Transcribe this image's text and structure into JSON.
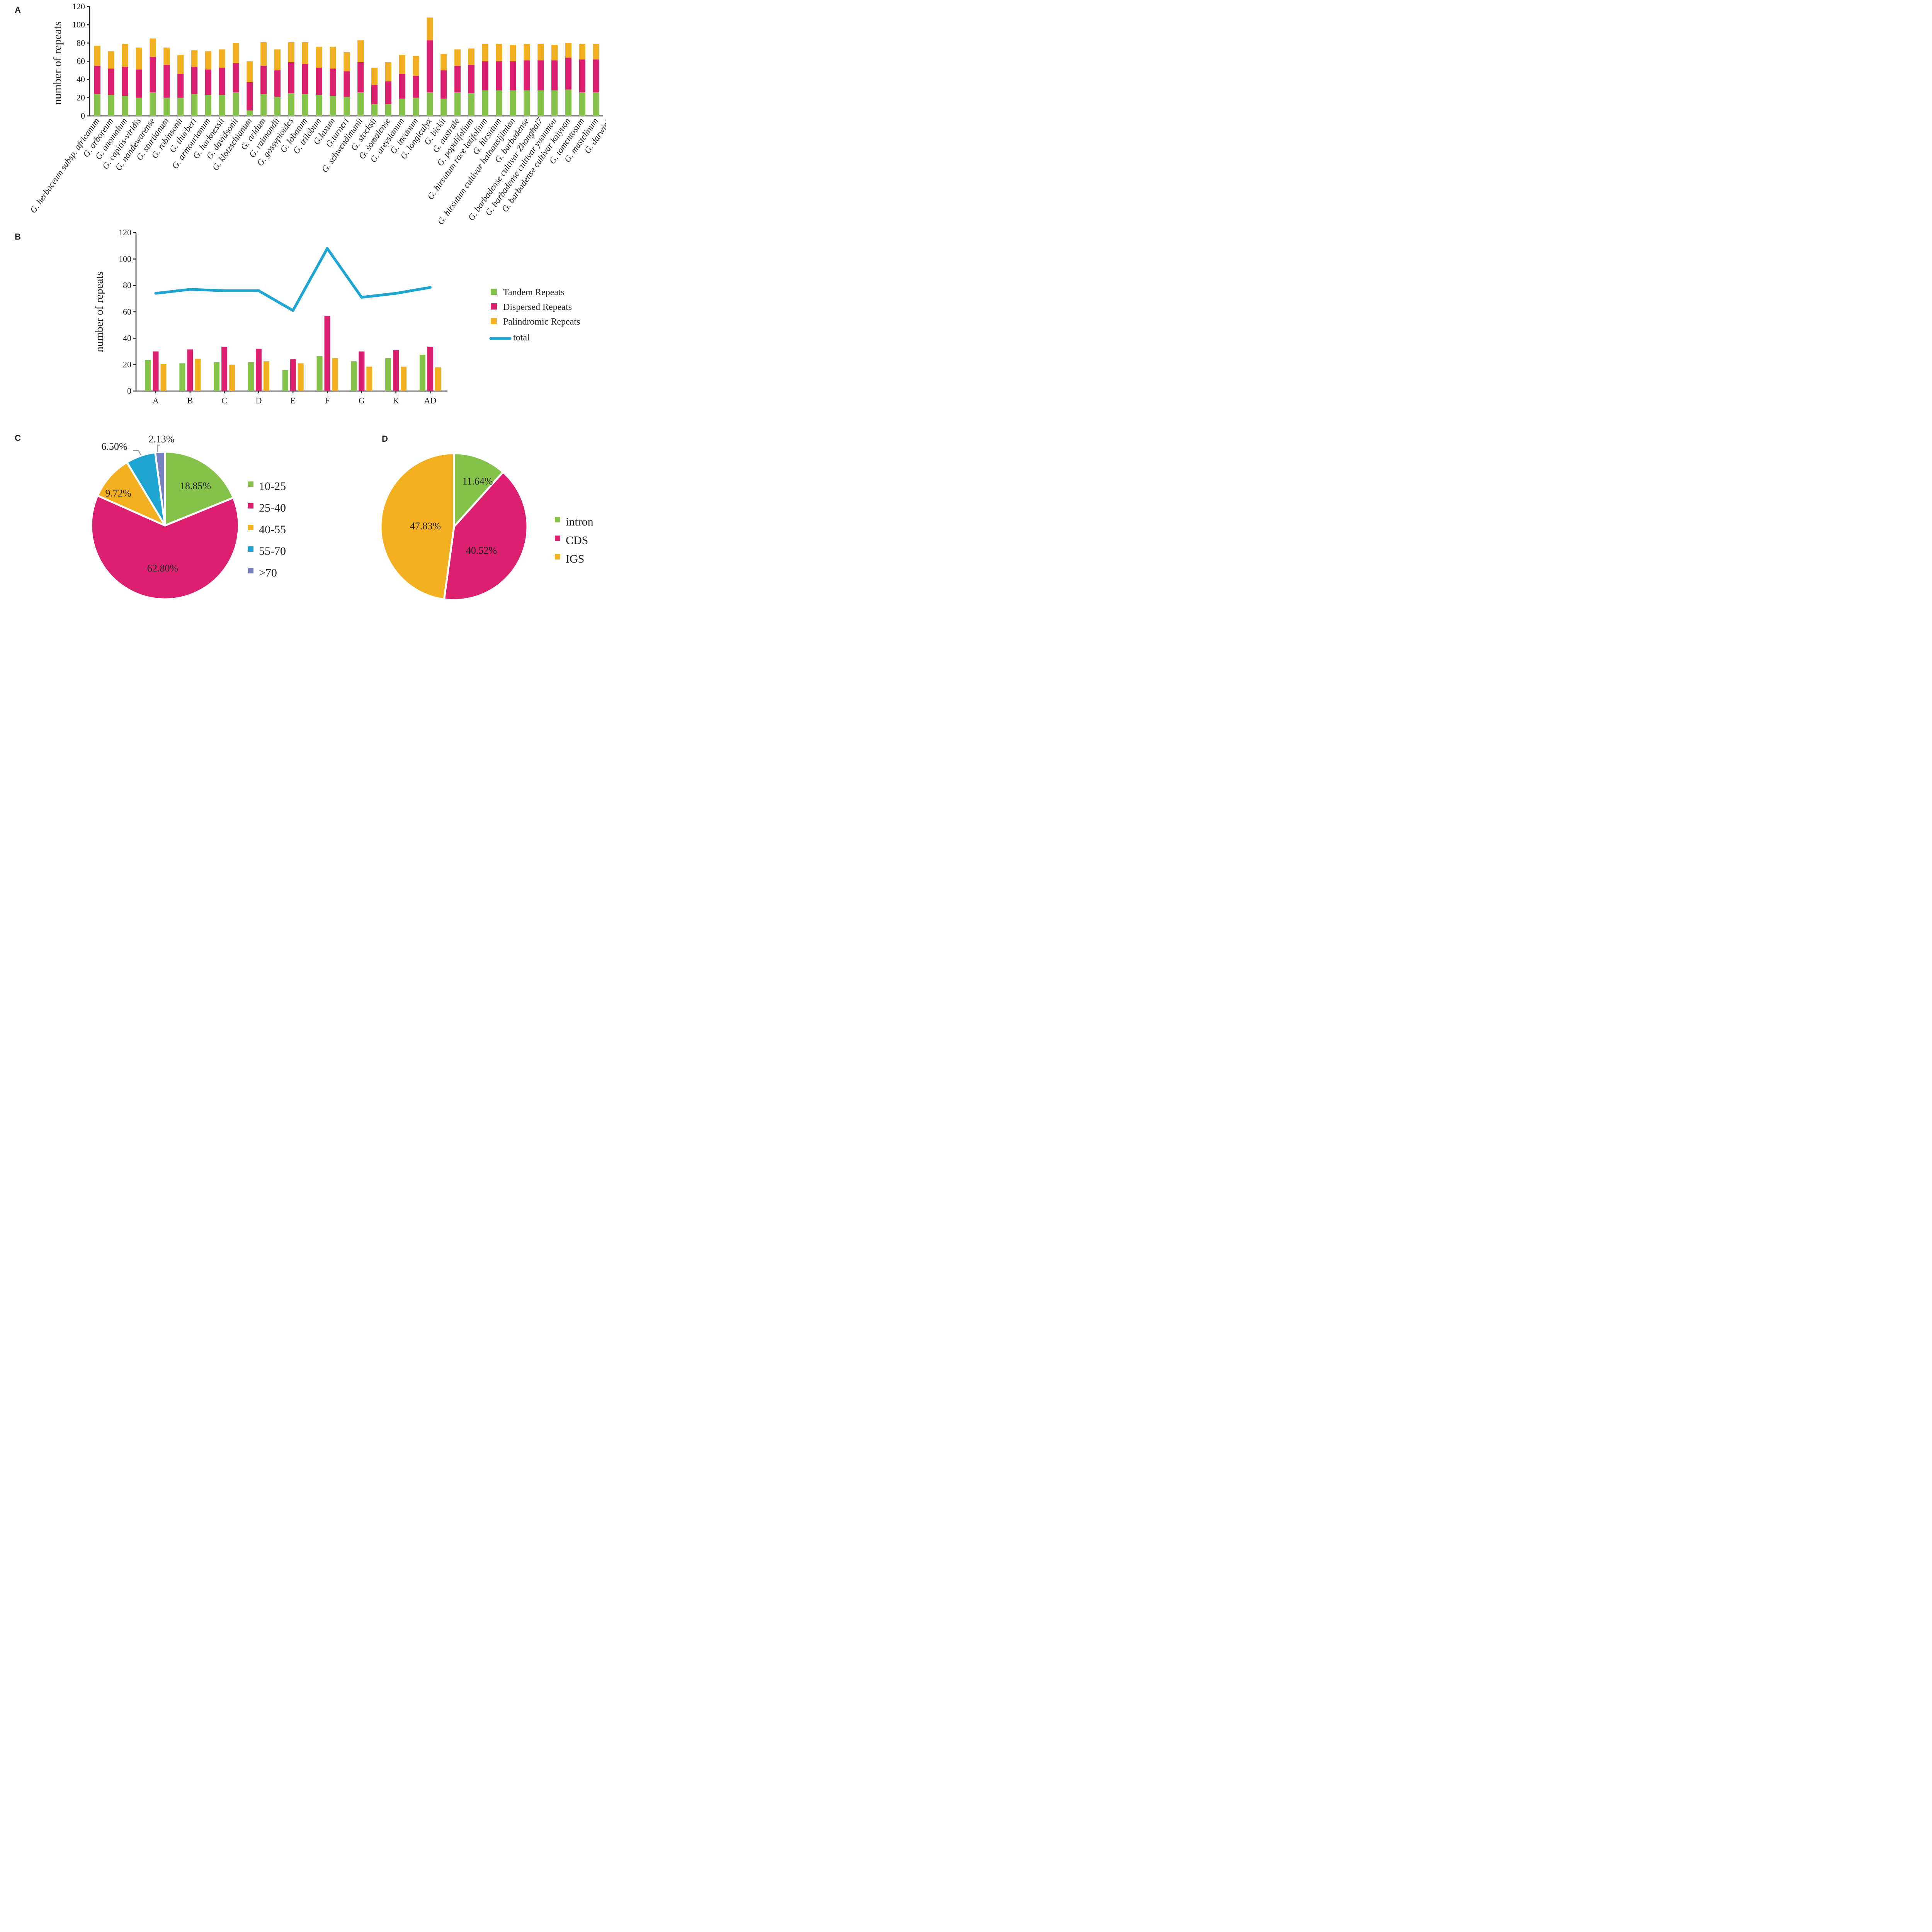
{
  "colors": {
    "tandem": "#84c24a",
    "dispersed": "#dc1f6e",
    "palindromic": "#f2b020",
    "total": "#1ea5d2",
    "c55_70": "#1da4d0",
    "c70": "#7480c0",
    "axis": "#231f20"
  },
  "chart_data": [
    {
      "panel": "A",
      "type": "bar",
      "stacked": true,
      "ylabel": "number of  repeats",
      "ylim": [
        0,
        120
      ],
      "yticks": [
        0,
        20,
        40,
        60,
        80,
        100,
        120
      ],
      "categories": [
        "G. herbaceum subsp. africanum",
        "G. arboreum",
        "G. anomalum",
        "G. capitis-viridis",
        "G. nandewarense",
        "G. sturtianum",
        "G. robinsonii",
        "G. thurberi",
        "G. armourianum",
        "G. harknessii",
        "G. davidsonii",
        "G. klotzschianum",
        "G. aridum",
        "G. raimondii",
        "G. gossypioides",
        "G. lobatum",
        "G. trilobum",
        "G.laxum",
        "G.turneri",
        "G. schwendimanii",
        "G. stocksii",
        "G. somalense",
        "G. areysianum",
        "G. incanum",
        "G. longicalyx",
        "G. bickii",
        "G. australe",
        "G. populifolium",
        "G. hirsutum race latifolium",
        "G. hirsutum",
        "G. hirsutum cultivar hainansijimian",
        "G. barbadense",
        "G. barbadense cultivar Zhonghai7",
        "G. barbadense cultivar yuanmou",
        "G. barbadense cultivar kaiyuan",
        "G. tomentosum",
        "G. mustelinum",
        "G. darwinii"
      ],
      "series": [
        {
          "name": "Tandem Repeats",
          "color_key": "tandem",
          "values": [
            24,
            23,
            22,
            20,
            26,
            20,
            20,
            24,
            23,
            23,
            26,
            6,
            24,
            21,
            25,
            24,
            23,
            22,
            21,
            26,
            13,
            13,
            19,
            20,
            26,
            19,
            26,
            25,
            28,
            28,
            28,
            28,
            28,
            28,
            29,
            26,
            26,
            24
          ]
        },
        {
          "name": "Dispersed Repeats",
          "color_key": "dispersed",
          "values": [
            31,
            29,
            32,
            31,
            39,
            36,
            26,
            30,
            28,
            30,
            32,
            31,
            31,
            29,
            34,
            33,
            30,
            30,
            28,
            33,
            21,
            25,
            27,
            24,
            57,
            31,
            29,
            31,
            32,
            32,
            32,
            33,
            33,
            33,
            35,
            36,
            36,
            34
          ]
        },
        {
          "name": "Palindromic Repeats",
          "color_key": "palindromic",
          "values": [
            22,
            19,
            25,
            24,
            20,
            19,
            21,
            18,
            20,
            20,
            22,
            23,
            26,
            23,
            22,
            24,
            23,
            24,
            21,
            24,
            19,
            21,
            21,
            22,
            25,
            18,
            18,
            18,
            19,
            19,
            18,
            18,
            18,
            17,
            16,
            17,
            17,
            18
          ]
        }
      ]
    },
    {
      "panel": "B",
      "type": "bar",
      "ylabel": "number of  repeats",
      "ylim": [
        0,
        120
      ],
      "yticks": [
        0,
        20,
        40,
        60,
        80,
        100,
        120
      ],
      "categories": [
        "A",
        "B",
        "C",
        "D",
        "E",
        "F",
        "G",
        "K",
        "AD"
      ],
      "series": [
        {
          "name": "Tandem Repeats",
          "color_key": "tandem",
          "values": [
            23.5,
            21,
            22,
            22,
            16,
            26.5,
            22.5,
            25,
            27.5
          ]
        },
        {
          "name": "Dispersed Repeats",
          "color_key": "dispersed",
          "values": [
            30,
            31.5,
            33.5,
            32,
            24,
            57,
            30,
            31,
            33.5
          ]
        },
        {
          "name": "Palindromic Repeats",
          "color_key": "palindromic",
          "values": [
            20.5,
            24.5,
            20,
            22.5,
            21,
            25,
            18.5,
            18.5,
            18
          ]
        },
        {
          "name": "total",
          "type": "line",
          "color_key": "total",
          "values": [
            74,
            77,
            76,
            76,
            61,
            108,
            71,
            74,
            78.5
          ]
        }
      ],
      "legend": [
        "Tandem Repeats",
        "Dispersed Repeats",
        "Palindromic Repeats",
        "total"
      ]
    },
    {
      "panel": "C",
      "type": "pie",
      "slices": [
        {
          "label": "10-25",
          "value": 18.85,
          "text": "18.85%",
          "color_key": "tandem"
        },
        {
          "label": "25-40",
          "value": 62.8,
          "text": "62.80%",
          "color_key": "dispersed"
        },
        {
          "label": "40-55",
          "value": 9.72,
          "text": "9.72%",
          "color_key": "palindromic"
        },
        {
          "label": "55-70",
          "value": 6.5,
          "text": "6.50%",
          "color_key": "c55_70"
        },
        {
          "label": ">70",
          "value": 2.13,
          "text": "2.13%",
          "color_key": "c70"
        }
      ]
    },
    {
      "panel": "D",
      "type": "pie",
      "slices": [
        {
          "label": "intron",
          "value": 11.64,
          "text": "11.64%",
          "color_key": "tandem"
        },
        {
          "label": "CDS",
          "value": 40.52,
          "text": "40.52%",
          "color_key": "dispersed"
        },
        {
          "label": "IGS",
          "value": 47.83,
          "text": "47.83%",
          "color_key": "palindromic"
        }
      ]
    }
  ]
}
